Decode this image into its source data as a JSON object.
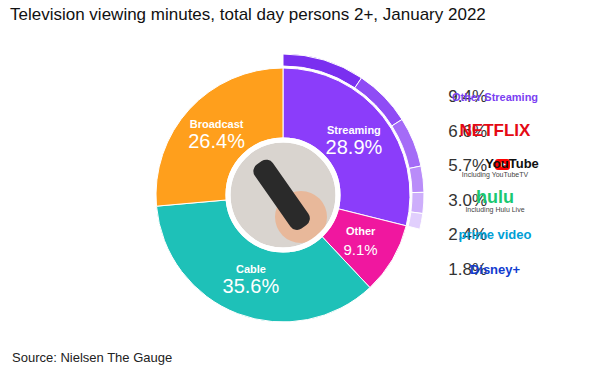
{
  "chart_data": [
    {
      "type": "donut",
      "title": "Television viewing minutes, total day persons 2+, January 2022",
      "source": "Source: Nielsen The Gauge",
      "categories": [
        "Streaming",
        "Other",
        "Cable",
        "Broadcast"
      ],
      "values": [
        28.9,
        9.1,
        35.6,
        26.4
      ],
      "value_labels": [
        "28.9%",
        "9.1%",
        "35.6%",
        "26.4%"
      ],
      "colors": [
        "#8b3dfa",
        "#f0179f",
        "#1ec1b8",
        "#ff9f1c"
      ],
      "data_labels": true
    },
    {
      "type": "donut",
      "categories": [
        "Other Streaming",
        "NETFLIX",
        "YouTube",
        "hulu",
        "prime video",
        "Disney+"
      ],
      "sublabels": [
        null,
        null,
        "Including YouTubeTV",
        "Including Hulu Live",
        null,
        null
      ],
      "values": [
        9.4,
        6.6,
        5.7,
        3.0,
        2.4,
        1.8
      ],
      "value_labels": [
        "9.4%",
        "6.6%",
        "5.7%",
        "3.0%",
        "2.4%",
        "1.8%"
      ],
      "colors": [
        "#7a2ff0",
        "#8f4cf5",
        "#a46bf7",
        "#b98cf9",
        "#cdaefb",
        "#e1cffd"
      ],
      "legend": "right",
      "data_labels": true
    }
  ]
}
